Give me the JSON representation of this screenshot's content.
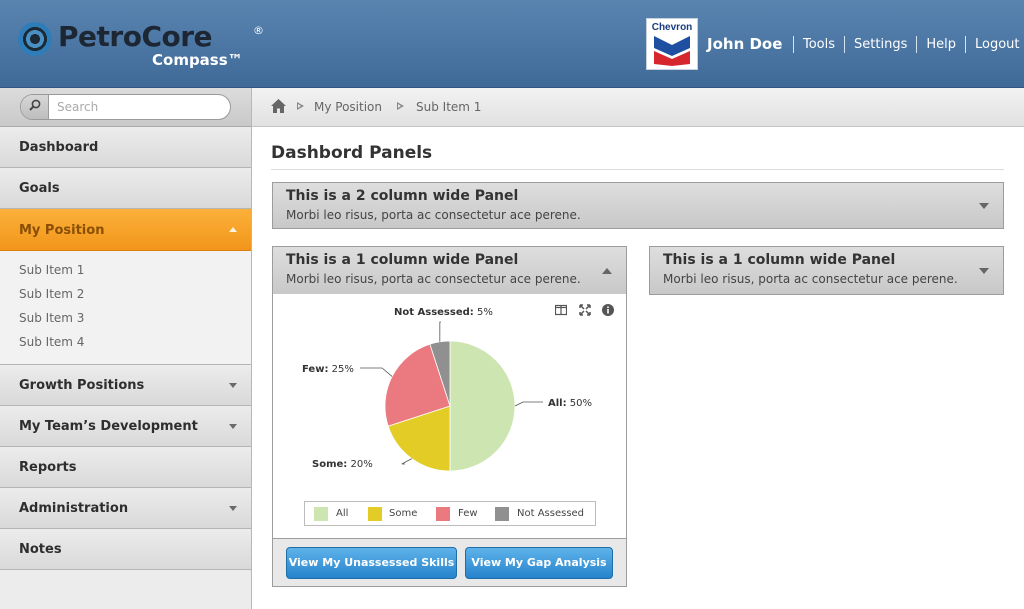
{
  "header": {
    "logo_name": "PetroCore",
    "logo_reg": "®",
    "logo_sub": "Compass™",
    "partner_logo": "Chevron",
    "user_name": "John Doe",
    "links": [
      "Tools",
      "Settings",
      "Help",
      "Logout"
    ],
    "colors": {
      "header_bg": "#4a76a4"
    }
  },
  "search": {
    "placeholder": "Search"
  },
  "sidebar": {
    "items": [
      {
        "label": "Dashboard",
        "has_submenu": false
      },
      {
        "label": "Goals",
        "has_submenu": false
      },
      {
        "label": "My Position",
        "has_submenu": true,
        "active": true
      },
      {
        "label": "Growth Positions",
        "has_submenu": true
      },
      {
        "label": "My Team’s Development",
        "has_submenu": true
      },
      {
        "label": "Reports",
        "has_submenu": false
      },
      {
        "label": "Administration",
        "has_submenu": true
      },
      {
        "label": "Notes",
        "has_submenu": false
      }
    ],
    "sub_items": [
      "Sub Item 1",
      "Sub Item 2",
      "Sub Item 3",
      "Sub Item 4"
    ],
    "active_color": "#f7a22a"
  },
  "breadcrumb": {
    "items": [
      "My Position",
      "Sub Item 1"
    ]
  },
  "main": {
    "title": "Dashbord Panels",
    "panels": [
      {
        "title": "This is a 2 column wide Panel",
        "subtitle": "Morbi leo risus, porta ac consectetur ace perene.",
        "state": "collapsed"
      },
      {
        "title": "This is a 1 column wide Panel",
        "subtitle": "Morbi leo risus, porta ac consectetur ace perene.",
        "state": "expanded"
      },
      {
        "title": "This is a 1 column wide Panel",
        "subtitle": "Morbi leo risus, porta ac consectetur ace perene.",
        "state": "collapsed"
      }
    ],
    "buttons": {
      "unassessed": "View My Unassessed Skills",
      "gap": "View My Gap Analysis"
    },
    "chart_tools": [
      "split-view-icon",
      "expand-icon",
      "info-icon"
    ]
  },
  "chart_data": {
    "type": "pie",
    "labels": [
      "All",
      "Some",
      "Few",
      "Not Assessed"
    ],
    "values": [
      50,
      20,
      25,
      5
    ],
    "value_labels": [
      "50%",
      "20%",
      "25%",
      "5%"
    ],
    "colors": [
      "#cde5b0",
      "#e2cc25",
      "#eb7a80",
      "#909090"
    ],
    "legend_position": "bottom"
  }
}
